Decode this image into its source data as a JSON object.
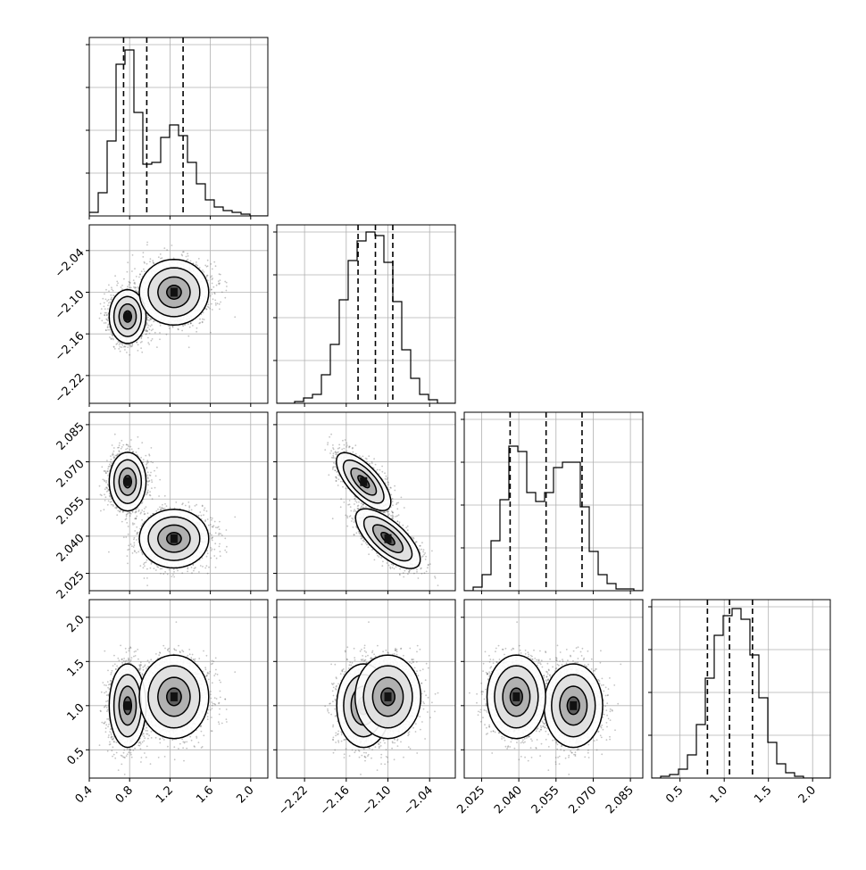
{
  "colors": {
    "ink": "#000000",
    "grid": "#b0b0b0",
    "scatter": "#555555"
  },
  "chart_data": {
    "type": "corner",
    "params": [
      {
        "ticks": [
          "0.4",
          "0.8",
          "1.2",
          "1.6",
          "2.0"
        ],
        "tickvals": [
          0.4,
          0.8,
          1.2,
          1.6,
          2.0
        ],
        "range": [
          0.4,
          2.17
        ],
        "quantiles": [
          0.74,
          0.97,
          1.33
        ],
        "hist": [
          0.02,
          0.13,
          0.42,
          0.85,
          0.93,
          0.58,
          0.29,
          0.3,
          0.44,
          0.51,
          0.45,
          0.3,
          0.18,
          0.09,
          0.05,
          0.03,
          0.02,
          0.01,
          0.0,
          0.0
        ]
      },
      {
        "ticks": [
          "−2.22",
          "−2.16",
          "−2.10",
          "−2.04"
        ],
        "tickvals": [
          -2.22,
          -2.16,
          -2.1,
          -2.04
        ],
        "range": [
          -2.26,
          -2.003
        ],
        "quantiles": [
          -2.143,
          -2.118,
          -2.093
        ],
        "hist": [
          0.0,
          0.0,
          0.01,
          0.03,
          0.05,
          0.16,
          0.33,
          0.58,
          0.8,
          0.91,
          0.96,
          0.94,
          0.79,
          0.57,
          0.3,
          0.14,
          0.05,
          0.02,
          0.0,
          0.0
        ]
      },
      {
        "ticks": [
          "2.025",
          "2.040",
          "2.055",
          "2.070",
          "2.085"
        ],
        "tickvals": [
          2.025,
          2.04,
          2.055,
          2.07,
          2.085
        ],
        "range": [
          2.018,
          2.09
        ],
        "quantiles": [
          2.0365,
          2.051,
          2.0655
        ],
        "hist": [
          0.0,
          0.02,
          0.09,
          0.28,
          0.51,
          0.81,
          0.78,
          0.55,
          0.5,
          0.55,
          0.69,
          0.72,
          0.72,
          0.47,
          0.22,
          0.09,
          0.04,
          0.01,
          0.01,
          0.0
        ]
      },
      {
        "ticks": [
          "0.5",
          "1.0",
          "1.5",
          "2.0"
        ],
        "tickvals": [
          0.5,
          1.0,
          1.5,
          2.0
        ],
        "range": [
          0.18,
          2.2
        ],
        "quantiles": [
          0.81,
          1.06,
          1.32
        ],
        "hist": [
          0.0,
          0.01,
          0.02,
          0.05,
          0.13,
          0.3,
          0.56,
          0.8,
          0.91,
          0.95,
          0.89,
          0.69,
          0.45,
          0.2,
          0.08,
          0.03,
          0.01,
          0.0,
          0.0,
          0.0
        ]
      }
    ],
    "modes": [
      {
        "mean": [
          0.78,
          -2.135,
          2.062,
          1.0
        ],
        "sd": [
          0.085,
          0.018,
          0.0055,
          0.22
        ],
        "weight": 0.5
      },
      {
        "mean": [
          1.24,
          -2.1,
          2.039,
          1.1
        ],
        "sd": [
          0.16,
          0.022,
          0.0055,
          0.22
        ],
        "weight": 0.5
      }
    ],
    "samples": 4000
  }
}
